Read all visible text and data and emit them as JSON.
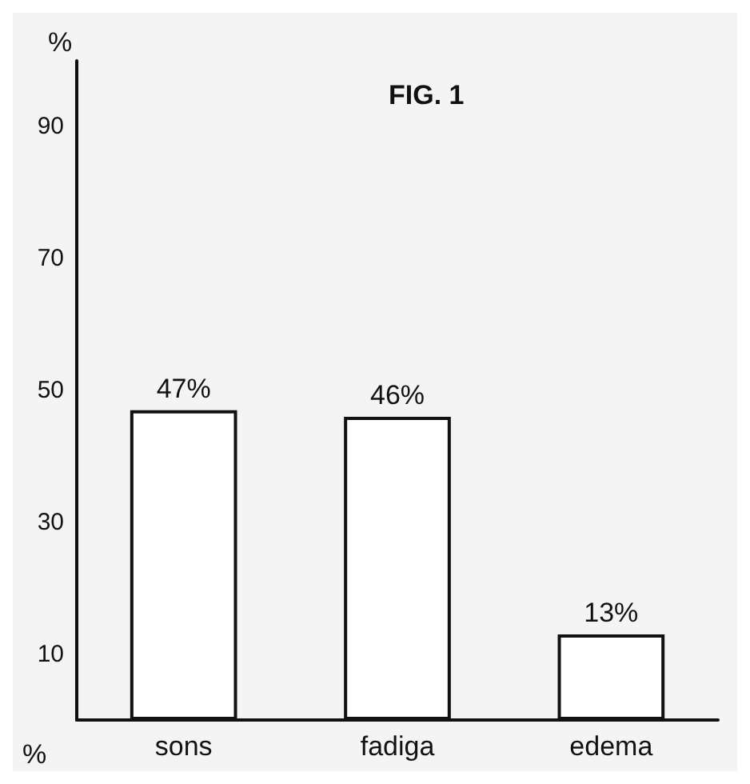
{
  "chart_data": {
    "type": "bar",
    "title": "FIG. 1",
    "ylabel": "%",
    "categories": [
      "sons",
      "fadiga",
      "edema"
    ],
    "values": [
      47,
      46,
      13
    ],
    "color": "#ffffff",
    "ylim": [
      0,
      100
    ],
    "yticks": [
      10,
      30,
      50,
      70,
      90
    ],
    "grid": false,
    "value_labels": [
      "47%",
      "46%",
      "13%"
    ],
    "annotations": [
      "%"
    ]
  }
}
